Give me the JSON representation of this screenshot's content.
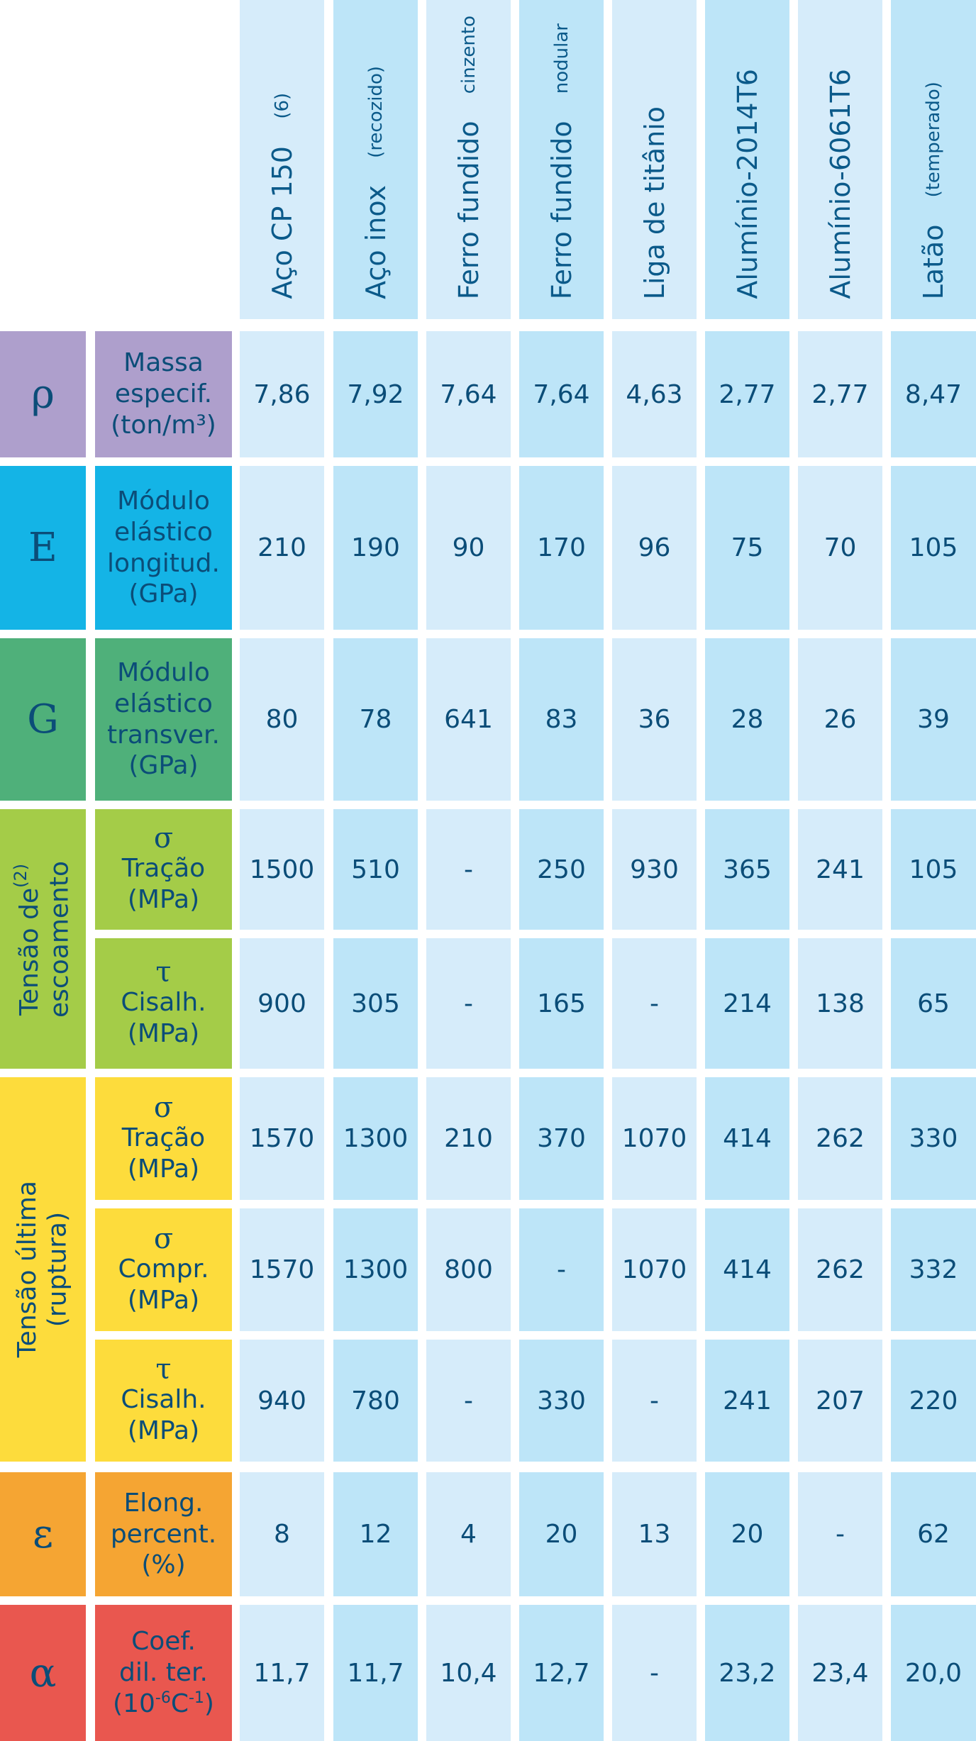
{
  "columns": [
    {
      "main": "Aço CP 150",
      "sub": "(6)"
    },
    {
      "main": "Aço inox",
      "sub": "(recozido)"
    },
    {
      "main": "Ferro fundido",
      "sub": "cinzento"
    },
    {
      "main": "Ferro fundido",
      "sub": "nodular"
    },
    {
      "main": "Liga de titânio",
      "sub": ""
    },
    {
      "main": "Alumínio-2014T6",
      "sub": ""
    },
    {
      "main": "Alumínio-6061T6",
      "sub": ""
    },
    {
      "main": "Latão",
      "sub": "(temperado)"
    }
  ],
  "sections": [
    {
      "key": "rho",
      "symbol": "ρ",
      "color": "#ae9fcc",
      "label_color": "#ae9fcc"
    },
    {
      "key": "E",
      "symbol": "E",
      "color": "#14b4e6",
      "label_color": "#14b4e6"
    },
    {
      "key": "G",
      "symbol": "G",
      "color": "#4fb07a",
      "label_color": "#4fb07a"
    },
    {
      "key": "escoamento",
      "group_pre": "Tensão de",
      "group_sup": "(2)",
      "group_line2": "escoamento",
      "color": "#a4cc48",
      "label_color": "#a4cc48"
    },
    {
      "key": "ruptura",
      "group_line1": "Tensão última",
      "group_line2": "(ruptura)",
      "color": "#fddc3c",
      "label_color": "#fddc3c"
    },
    {
      "key": "epsilon",
      "symbol": "ε",
      "color": "#f5a533",
      "label_color": "#f5a533"
    },
    {
      "key": "alpha",
      "symbol": "α",
      "color": "#e9574f",
      "label_color": "#e9574f"
    }
  ],
  "rows": [
    {
      "greek": "",
      "lines": [
        "Massa",
        "especif.",
        "(ton/m³)"
      ],
      "values": [
        "7,86",
        "7,92",
        "7,64",
        "7,64",
        "4,63",
        "2,77",
        "2,77",
        "8,47"
      ]
    },
    {
      "greek": "",
      "lines": [
        "Módulo",
        "elástico",
        "longitud.",
        "(GPa)"
      ],
      "values": [
        "210",
        "190",
        "90",
        "170",
        "96",
        "75",
        "70",
        "105"
      ]
    },
    {
      "greek": "",
      "lines": [
        "Módulo",
        "elástico",
        "transver.",
        "(GPa)"
      ],
      "values": [
        "80",
        "78",
        "641",
        "83",
        "36",
        "28",
        "26",
        "39"
      ]
    },
    {
      "greek": "σ",
      "lines": [
        "Tração",
        "(MPa)"
      ],
      "values": [
        "1500",
        "510",
        "-",
        "250",
        "930",
        "365",
        "241",
        "105"
      ]
    },
    {
      "greek": "τ",
      "lines": [
        "Cisalh.",
        "(MPa)"
      ],
      "values": [
        "900",
        "305",
        "-",
        "165",
        "-",
        "214",
        "138",
        "65"
      ]
    },
    {
      "greek": "σ",
      "lines": [
        "Tração",
        "(MPa)"
      ],
      "values": [
        "1570",
        "1300",
        "210",
        "370",
        "1070",
        "414",
        "262",
        "330"
      ]
    },
    {
      "greek": "σ",
      "lines": [
        "Compr.",
        "(MPa)"
      ],
      "values": [
        "1570",
        "1300",
        "800",
        "-",
        "1070",
        "414",
        "262",
        "332"
      ]
    },
    {
      "greek": "τ",
      "lines": [
        "Cisalh.",
        "(MPa)"
      ],
      "values": [
        "940",
        "780",
        "-",
        "330",
        "-",
        "241",
        "207",
        "220"
      ]
    },
    {
      "greek": "",
      "lines": [
        "Elong.",
        "percent.",
        "(%)"
      ],
      "values": [
        "8",
        "12",
        "4",
        "20",
        "13",
        "20",
        "-",
        "62"
      ]
    },
    {
      "greek": "",
      "lines": [
        "Coef.",
        "dil. ter."
      ],
      "alpha_unit": {
        "pre": "(10",
        "exp1": "-6",
        "mid": "C",
        "exp2": "-1",
        "post": ")"
      },
      "values": [
        "11,7",
        "11,7",
        "10,4",
        "12,7",
        "-",
        "23,2",
        "23,4",
        "20,0"
      ]
    }
  ]
}
